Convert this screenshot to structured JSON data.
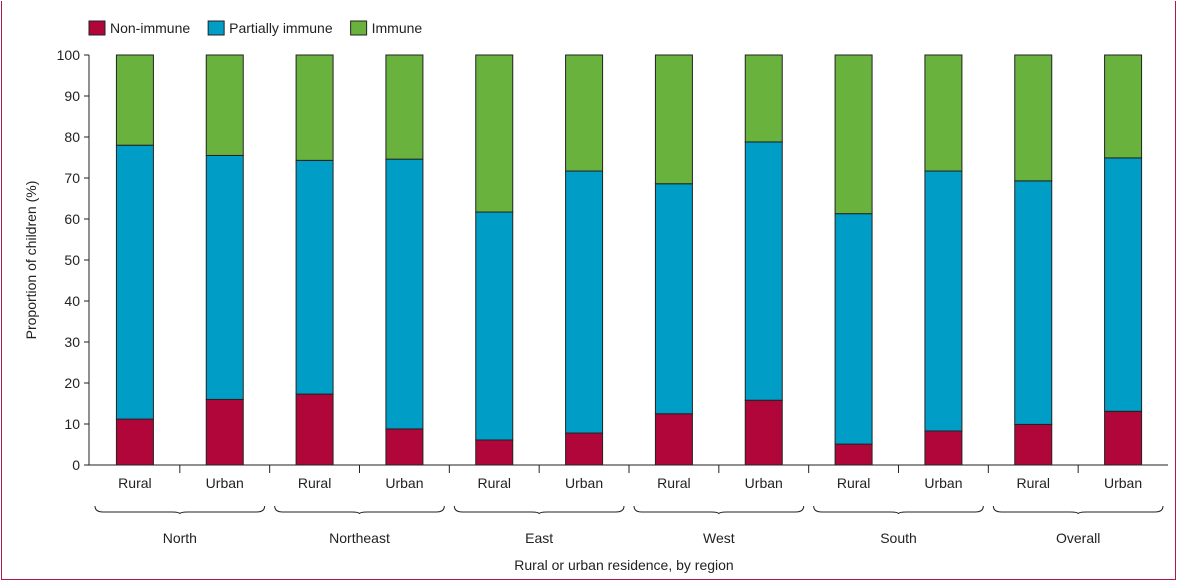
{
  "chart_data": {
    "type": "bar",
    "stacked": true,
    "xlabel": "Rural or urban residence, by region",
    "ylabel": "Proportion of children (%)",
    "ylim": [
      0,
      100
    ],
    "yticks": [
      0,
      10,
      20,
      30,
      40,
      50,
      60,
      70,
      80,
      90,
      100
    ],
    "grid": false,
    "legend_position": "top-left",
    "groups": [
      "North",
      "Northeast",
      "East",
      "West",
      "South",
      "Overall"
    ],
    "categories": [
      "Rural",
      "Urban",
      "Rural",
      "Urban",
      "Rural",
      "Urban",
      "Rural",
      "Urban",
      "Rural",
      "Urban",
      "Rural",
      "Urban"
    ],
    "series": [
      {
        "name": "Non-immune",
        "color": "#b1063a",
        "values": [
          11.2,
          16.0,
          17.3,
          8.8,
          6.1,
          7.8,
          12.5,
          15.8,
          5.1,
          8.3,
          9.9,
          13.1
        ]
      },
      {
        "name": "Partially immune",
        "color": "#009ec6",
        "values": [
          66.8,
          59.5,
          57.0,
          65.8,
          55.6,
          63.9,
          56.1,
          63.0,
          56.2,
          63.4,
          59.4,
          61.8
        ]
      },
      {
        "name": "Immune",
        "color": "#6ab23e",
        "values": [
          22.0,
          24.5,
          25.7,
          25.4,
          38.3,
          28.3,
          31.4,
          21.2,
          38.7,
          28.3,
          30.7,
          25.1
        ]
      }
    ]
  }
}
